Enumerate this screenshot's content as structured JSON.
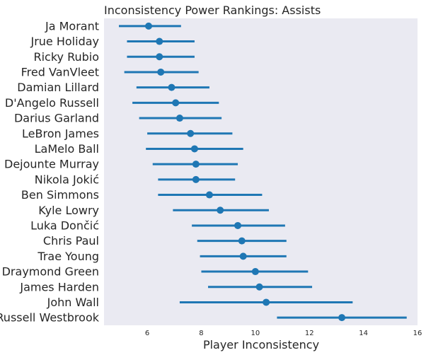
{
  "chart_data": {
    "type": "pointrange",
    "title": "Inconsistency Power Rankings: Assists",
    "xlabel": "Player Inconsistency",
    "ylabel": "",
    "xlim": [
      4.4,
      16
    ],
    "xticks": [
      6,
      8,
      10,
      12,
      14,
      16
    ],
    "grid": false,
    "background": "#eaeaf2",
    "color": "#1f77b4",
    "players": [
      {
        "name": "Ja Morant",
        "value": 6.05,
        "low": 4.95,
        "high": 7.25
      },
      {
        "name": "Jrue Holiday",
        "value": 6.45,
        "low": 5.25,
        "high": 7.75
      },
      {
        "name": "Ricky Rubio",
        "value": 6.45,
        "low": 5.25,
        "high": 7.75
      },
      {
        "name": "Fred VanVleet",
        "value": 6.5,
        "low": 5.15,
        "high": 7.9
      },
      {
        "name": "Damian Lillard",
        "value": 6.9,
        "low": 5.6,
        "high": 8.3
      },
      {
        "name": "D'Angelo Russell",
        "value": 7.05,
        "low": 5.45,
        "high": 8.65
      },
      {
        "name": "Darius Garland",
        "value": 7.2,
        "low": 5.7,
        "high": 8.75
      },
      {
        "name": "LeBron James",
        "value": 7.6,
        "low": 6.0,
        "high": 9.15
      },
      {
        "name": "LaMelo Ball",
        "value": 7.75,
        "low": 5.95,
        "high": 9.55
      },
      {
        "name": "Dejounte Murray",
        "value": 7.8,
        "low": 6.2,
        "high": 9.35
      },
      {
        "name": "Nikola Jokić",
        "value": 7.8,
        "low": 6.4,
        "high": 9.25
      },
      {
        "name": "Ben Simmons",
        "value": 8.3,
        "low": 6.4,
        "high": 10.25
      },
      {
        "name": "Kyle Lowry",
        "value": 8.7,
        "low": 6.95,
        "high": 10.5
      },
      {
        "name": "Luka Dončić",
        "value": 9.35,
        "low": 7.65,
        "high": 11.1
      },
      {
        "name": "Chris Paul",
        "value": 9.5,
        "low": 7.85,
        "high": 11.15
      },
      {
        "name": "Trae Young",
        "value": 9.55,
        "low": 7.95,
        "high": 11.15
      },
      {
        "name": "Draymond Green",
        "value": 10.0,
        "low": 8.0,
        "high": 11.95
      },
      {
        "name": "James Harden",
        "value": 10.15,
        "low": 8.25,
        "high": 12.1
      },
      {
        "name": "John Wall",
        "value": 10.4,
        "low": 7.2,
        "high": 13.6
      },
      {
        "name": "Russell Westbrook",
        "value": 13.2,
        "low": 10.8,
        "high": 15.6
      }
    ]
  }
}
